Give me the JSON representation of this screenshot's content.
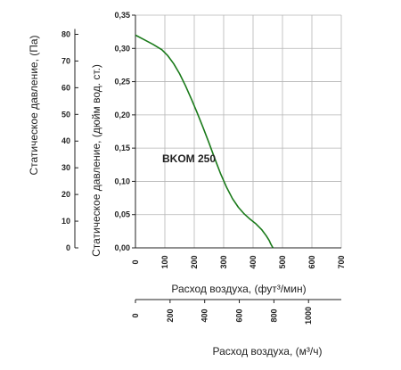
{
  "chart_data": {
    "type": "line",
    "title": "",
    "annotation": "BKOM 250",
    "xlabel_cfm": "Расход воздуха, (фут³/мин)",
    "xlabel_m3h": "Расход воздуха, (м³/ч)",
    "ylabel_in": "Статическое давление, (дюйм вод. ст.)",
    "ylabel_pa": "Статическое давление, (Па)",
    "x_cfm_ticks": [
      "0",
      "100",
      "200",
      "300",
      "400",
      "500",
      "600",
      "700"
    ],
    "x_m3h_ticks": [
      "0",
      "200",
      "400",
      "600",
      "800",
      "1000"
    ],
    "y_in_ticks": [
      "0,00",
      "0,05",
      "0,10",
      "0,15",
      "0,20",
      "0,25",
      "0,30",
      "0,35"
    ],
    "y_pa_ticks": [
      "0",
      "10",
      "20",
      "30",
      "40",
      "50",
      "60",
      "70",
      "80"
    ],
    "xlim": [
      0,
      700
    ],
    "ylim": [
      0,
      0.35
    ],
    "grid": true,
    "series": [
      {
        "color": "#1a7a1a",
        "x": [
          0,
          30,
          60,
          90,
          110,
          130,
          150,
          170,
          190,
          210,
          230,
          250,
          270,
          290,
          310,
          330,
          350,
          370,
          390,
          410,
          430,
          445,
          455,
          460,
          465,
          468
        ],
        "y": [
          0.32,
          0.313,
          0.306,
          0.298,
          0.289,
          0.277,
          0.262,
          0.244,
          0.224,
          0.203,
          0.181,
          0.158,
          0.134,
          0.111,
          0.091,
          0.074,
          0.061,
          0.051,
          0.043,
          0.036,
          0.027,
          0.018,
          0.011,
          0.006,
          0.002,
          0.0
        ]
      }
    ]
  }
}
